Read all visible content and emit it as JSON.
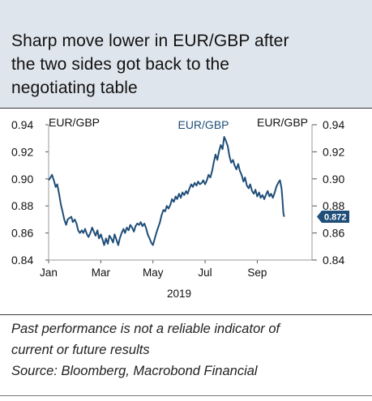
{
  "title_lines": [
    "Sharp move lower in EUR/GBP after",
    "the two sides got back to the",
    "negotiating table"
  ],
  "footer": {
    "disclaimer_lines": [
      "Past performance is not a reliable indicator of",
      "current or future results"
    ],
    "source": "Source: Bloomberg, Macrobond Financial"
  },
  "colors": {
    "line": "#1f4e79",
    "header_bg": "#dfe5ec",
    "label_box": "#1f4e79"
  },
  "chart_data": {
    "type": "line",
    "left_axis_label": "EUR/GBP",
    "right_axis_label": "EUR/GBP",
    "series_label": "EUR/GBP",
    "xlabel": "2019",
    "x_ticks": [
      "Jan",
      "Mar",
      "May",
      "Jul",
      "Sep"
    ],
    "x_tick_months": [
      1,
      3,
      5,
      7,
      9
    ],
    "xlim_months": [
      1,
      11.1
    ],
    "ylim": [
      0.84,
      0.94
    ],
    "y_ticks": [
      "0.84",
      "0.86",
      "0.88",
      "0.90",
      "0.92",
      "0.94"
    ],
    "y_tick_values": [
      0.84,
      0.86,
      0.88,
      0.9,
      0.92,
      0.94
    ],
    "last_value_label": "0.872",
    "points": [
      [
        1.0,
        0.899
      ],
      [
        1.07,
        0.901
      ],
      [
        1.13,
        0.903
      ],
      [
        1.2,
        0.899
      ],
      [
        1.27,
        0.894
      ],
      [
        1.33,
        0.896
      ],
      [
        1.4,
        0.889
      ],
      [
        1.47,
        0.881
      ],
      [
        1.53,
        0.876
      ],
      [
        1.6,
        0.87
      ],
      [
        1.67,
        0.866
      ],
      [
        1.73,
        0.87
      ],
      [
        1.8,
        0.871
      ],
      [
        1.87,
        0.872
      ],
      [
        1.93,
        0.868
      ],
      [
        2.0,
        0.87
      ],
      [
        2.07,
        0.867
      ],
      [
        2.13,
        0.862
      ],
      [
        2.2,
        0.86
      ],
      [
        2.27,
        0.862
      ],
      [
        2.33,
        0.86
      ],
      [
        2.4,
        0.863
      ],
      [
        2.47,
        0.859
      ],
      [
        2.53,
        0.857
      ],
      [
        2.6,
        0.86
      ],
      [
        2.67,
        0.864
      ],
      [
        2.73,
        0.861
      ],
      [
        2.8,
        0.858
      ],
      [
        2.87,
        0.862
      ],
      [
        2.93,
        0.856
      ],
      [
        3.0,
        0.859
      ],
      [
        3.07,
        0.855
      ],
      [
        3.13,
        0.851
      ],
      [
        3.2,
        0.856
      ],
      [
        3.27,
        0.852
      ],
      [
        3.33,
        0.858
      ],
      [
        3.4,
        0.856
      ],
      [
        3.47,
        0.853
      ],
      [
        3.53,
        0.859
      ],
      [
        3.6,
        0.855
      ],
      [
        3.67,
        0.851
      ],
      [
        3.73,
        0.856
      ],
      [
        3.8,
        0.86
      ],
      [
        3.87,
        0.863
      ],
      [
        3.93,
        0.86
      ],
      [
        4.0,
        0.864
      ],
      [
        4.07,
        0.862
      ],
      [
        4.13,
        0.866
      ],
      [
        4.2,
        0.864
      ],
      [
        4.27,
        0.861
      ],
      [
        4.33,
        0.865
      ],
      [
        4.4,
        0.867
      ],
      [
        4.47,
        0.866
      ],
      [
        4.53,
        0.868
      ],
      [
        4.6,
        0.865
      ],
      [
        4.67,
        0.867
      ],
      [
        4.73,
        0.864
      ],
      [
        4.8,
        0.859
      ],
      [
        4.87,
        0.856
      ],
      [
        4.93,
        0.853
      ],
      [
        5.0,
        0.851
      ],
      [
        5.07,
        0.856
      ],
      [
        5.13,
        0.86
      ],
      [
        5.2,
        0.864
      ],
      [
        5.27,
        0.868
      ],
      [
        5.33,
        0.873
      ],
      [
        5.4,
        0.877
      ],
      [
        5.47,
        0.876
      ],
      [
        5.53,
        0.88
      ],
      [
        5.6,
        0.878
      ],
      [
        5.67,
        0.881
      ],
      [
        5.73,
        0.885
      ],
      [
        5.8,
        0.883
      ],
      [
        5.87,
        0.887
      ],
      [
        5.93,
        0.885
      ],
      [
        6.0,
        0.889
      ],
      [
        6.07,
        0.886
      ],
      [
        6.13,
        0.89
      ],
      [
        6.2,
        0.888
      ],
      [
        6.27,
        0.891
      ],
      [
        6.33,
        0.889
      ],
      [
        6.4,
        0.893
      ],
      [
        6.47,
        0.896
      ],
      [
        6.53,
        0.894
      ],
      [
        6.6,
        0.897
      ],
      [
        6.67,
        0.895
      ],
      [
        6.73,
        0.898
      ],
      [
        6.8,
        0.896
      ],
      [
        6.87,
        0.897
      ],
      [
        6.93,
        0.899
      ],
      [
        7.0,
        0.896
      ],
      [
        7.07,
        0.899
      ],
      [
        7.13,
        0.903
      ],
      [
        7.2,
        0.901
      ],
      [
        7.27,
        0.906
      ],
      [
        7.33,
        0.912
      ],
      [
        7.4,
        0.918
      ],
      [
        7.47,
        0.914
      ],
      [
        7.53,
        0.92
      ],
      [
        7.6,
        0.925
      ],
      [
        7.67,
        0.922
      ],
      [
        7.73,
        0.931
      ],
      [
        7.8,
        0.928
      ],
      [
        7.87,
        0.924
      ],
      [
        7.93,
        0.917
      ],
      [
        8.0,
        0.912
      ],
      [
        8.07,
        0.914
      ],
      [
        8.13,
        0.91
      ],
      [
        8.2,
        0.907
      ],
      [
        8.27,
        0.911
      ],
      [
        8.33,
        0.906
      ],
      [
        8.4,
        0.903
      ],
      [
        8.47,
        0.898
      ],
      [
        8.53,
        0.901
      ],
      [
        8.6,
        0.895
      ],
      [
        8.67,
        0.893
      ],
      [
        8.73,
        0.896
      ],
      [
        8.8,
        0.891
      ],
      [
        8.87,
        0.889
      ],
      [
        8.93,
        0.892
      ],
      [
        9.0,
        0.887
      ],
      [
        9.07,
        0.89
      ],
      [
        9.13,
        0.886
      ],
      [
        9.2,
        0.888
      ],
      [
        9.27,
        0.885
      ],
      [
        9.33,
        0.888
      ],
      [
        9.4,
        0.891
      ],
      [
        9.47,
        0.887
      ],
      [
        9.53,
        0.889
      ],
      [
        9.6,
        0.886
      ],
      [
        9.67,
        0.89
      ],
      [
        9.73,
        0.894
      ],
      [
        9.8,
        0.897
      ],
      [
        9.87,
        0.899
      ],
      [
        9.93,
        0.893
      ],
      [
        9.97,
        0.884
      ],
      [
        10.0,
        0.875
      ],
      [
        10.03,
        0.872
      ]
    ]
  }
}
